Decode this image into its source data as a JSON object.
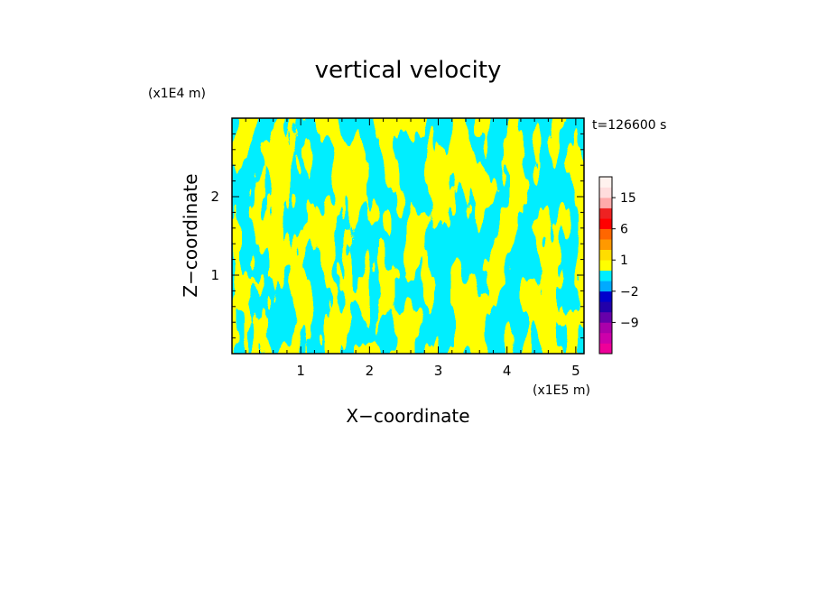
{
  "chart_data": {
    "type": "heatmap",
    "title": "vertical velocity",
    "xlabel": "X−coordinate",
    "ylabel": "Z−coordinate",
    "x_scale_label": "(x1E5 m)",
    "y_scale_label": "(x1E4 m)",
    "time_label": "t=126600 s",
    "xlim": [
      0,
      5.12
    ],
    "ylim": [
      0,
      3.0
    ],
    "x_ticks": [
      1,
      2,
      3,
      4,
      5
    ],
    "x_tick_labels": [
      "1",
      "2",
      "3",
      "4",
      "5"
    ],
    "y_ticks": [
      1,
      2
    ],
    "y_tick_labels": [
      "1",
      "2"
    ],
    "field_colors": {
      "negative": "#00eeff",
      "positive": "#ffff00"
    },
    "colorbar": {
      "levels": [
        -15,
        -12,
        -9,
        -6,
        -4,
        -2,
        -1,
        0,
        1,
        2,
        4,
        6,
        9,
        12,
        15,
        20
      ],
      "colors": [
        "#ee0099",
        "#cc00aa",
        "#aa00aa",
        "#6600aa",
        "#2200aa",
        "#0000cc",
        "#00aaff",
        "#00eeff",
        "#ffff00",
        "#ffdd00",
        "#ff9900",
        "#ff6600",
        "#ff0000",
        "#ee2222",
        "#ffaaaa",
        "#ffdddd",
        "#fff2ee"
      ],
      "tick_labels": [
        "15",
        "6",
        "1",
        "−2",
        "−9"
      ]
    }
  }
}
